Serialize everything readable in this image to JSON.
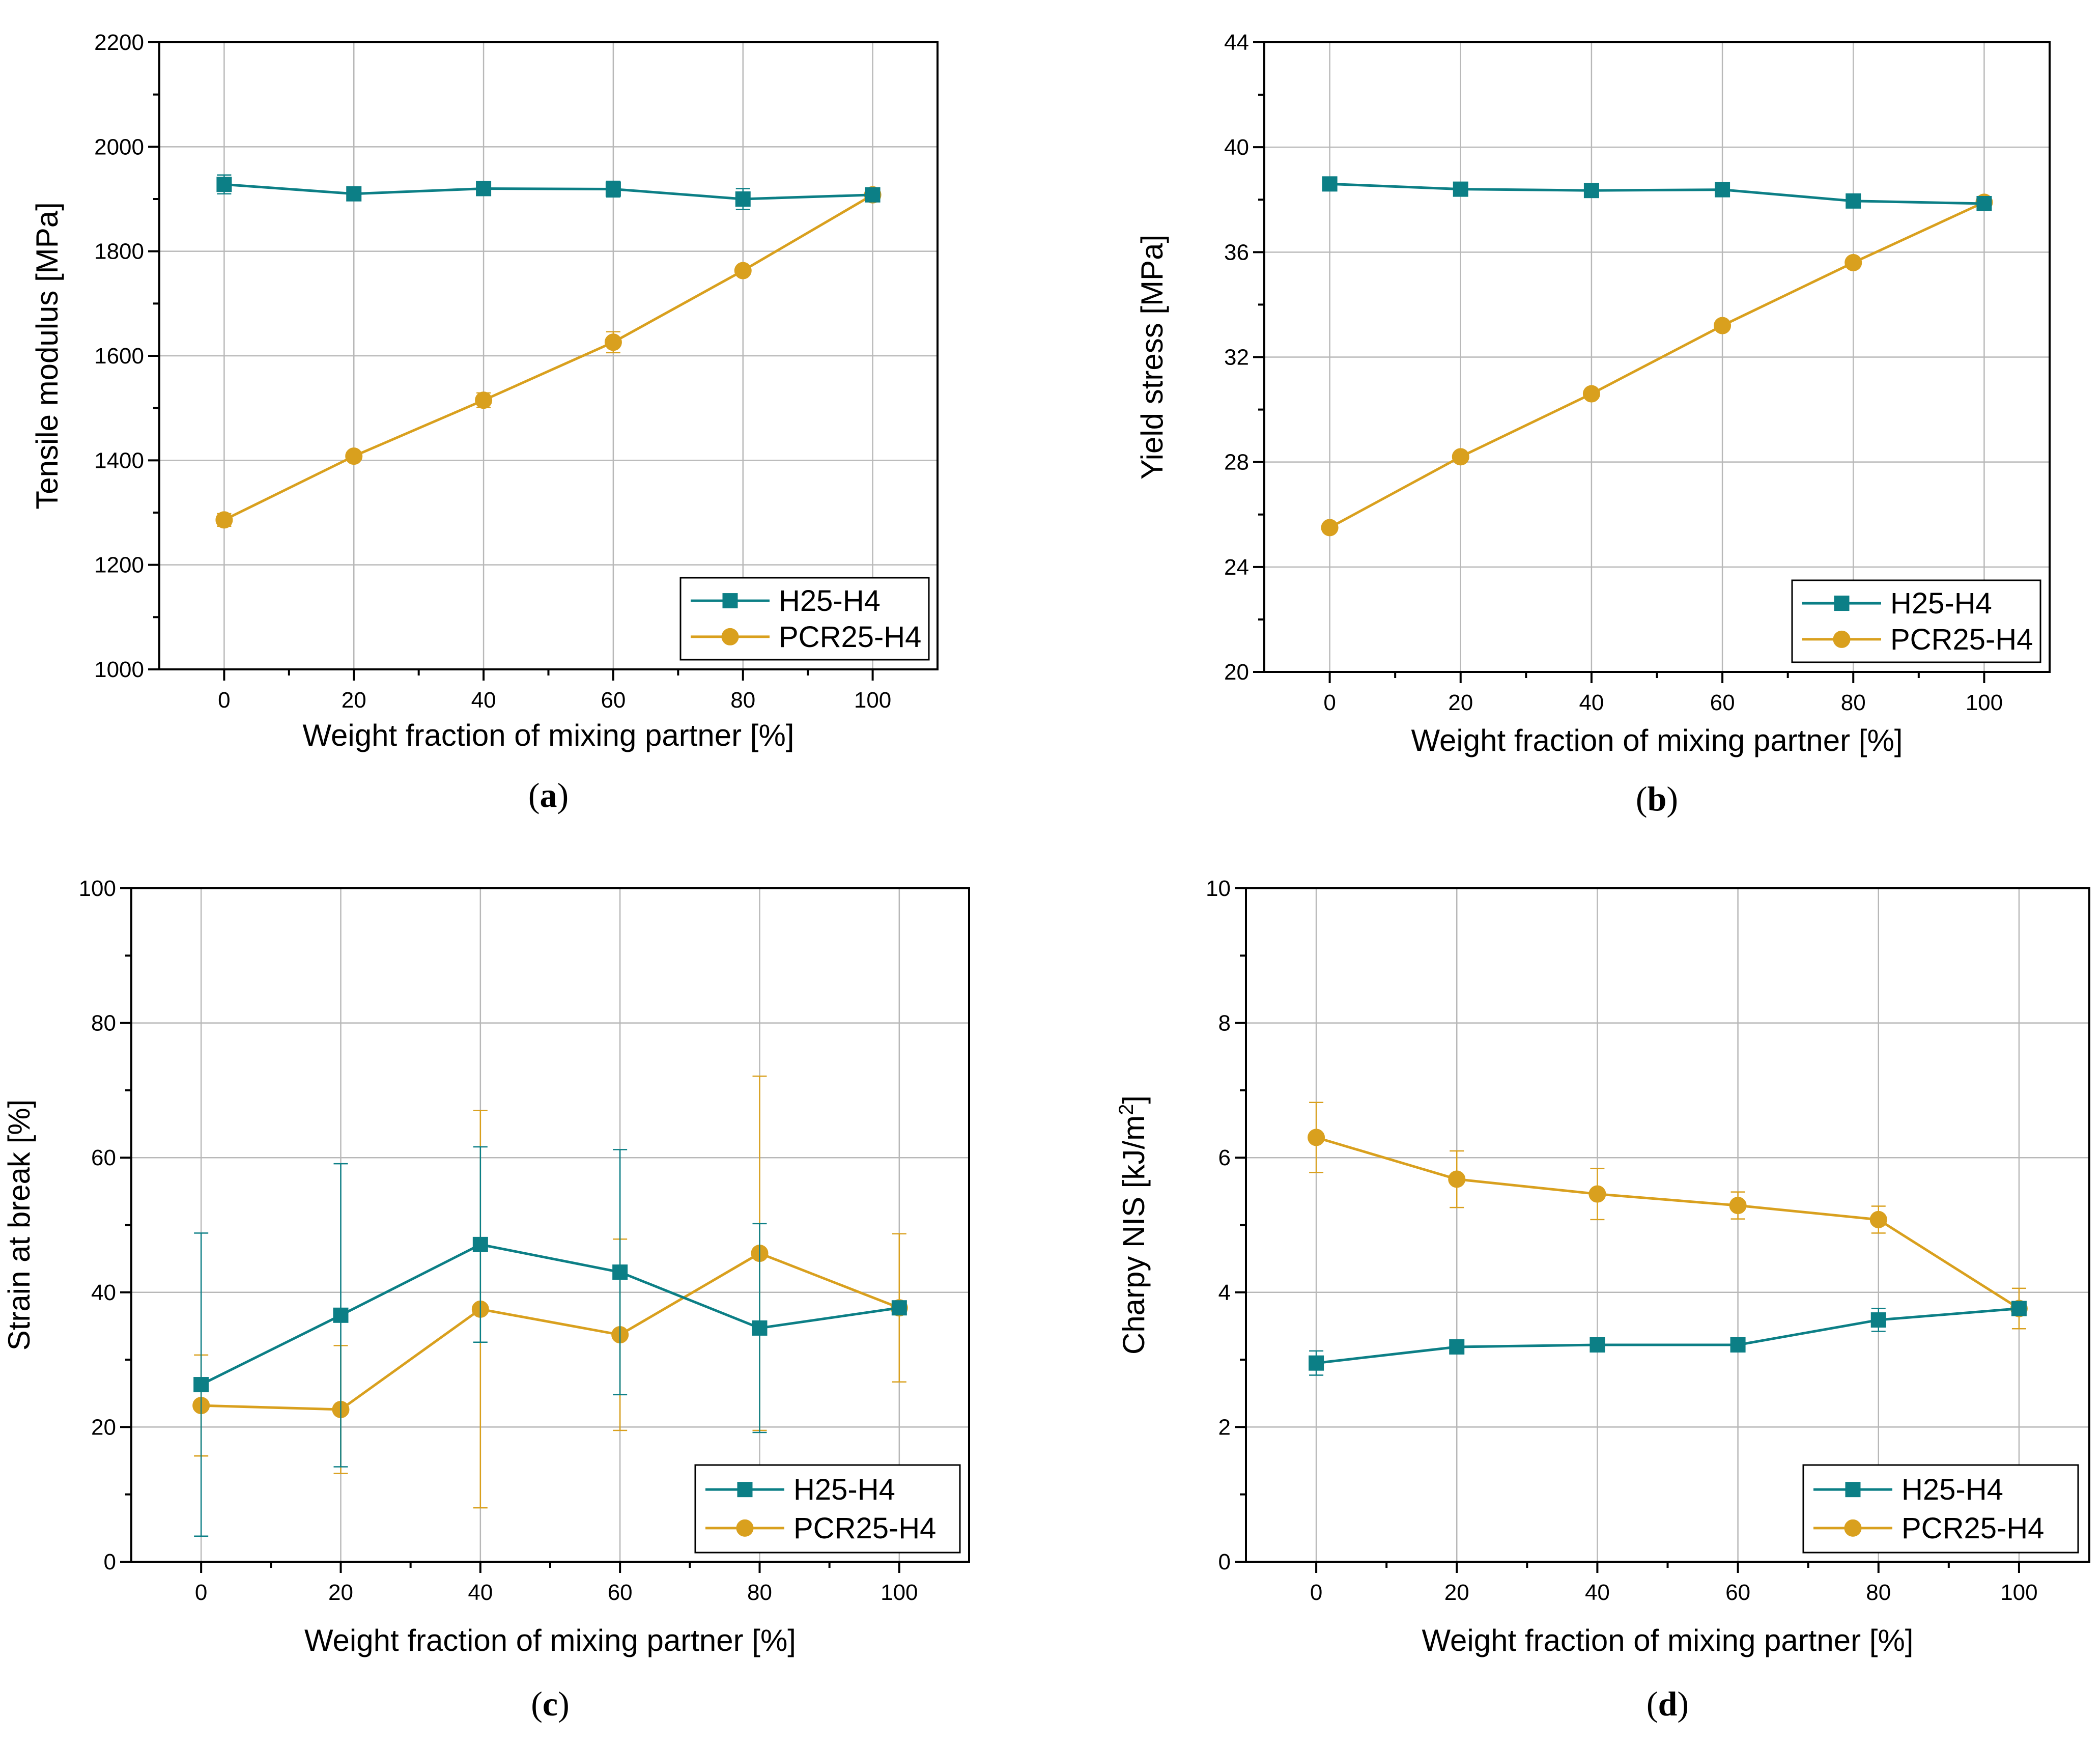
{
  "colors": {
    "H25-H4": "#0c7f86",
    "PCR25-H4": "#d9a01e"
  },
  "chart_data": [
    {
      "type": "line",
      "panel": "(a)",
      "xlabel": "Weight fraction of mixing partner [%]",
      "ylabel": "Tensile modulus [MPa]",
      "xlim": [
        -10,
        110
      ],
      "ylim": [
        1000,
        2200
      ],
      "xticks": [
        0,
        20,
        40,
        60,
        80,
        100
      ],
      "xtick_labels": [
        "0",
        "20",
        "40",
        "60",
        "80",
        "100"
      ],
      "yticks": [
        1000,
        1200,
        1400,
        1600,
        1800,
        2000,
        2200
      ],
      "ytick_labels": [
        "1000",
        "1200",
        "1400",
        "1600",
        "1800",
        "2000",
        "2200"
      ],
      "grid": true,
      "legend_position": "bottom-right",
      "x": [
        0,
        20,
        40,
        60,
        80,
        100
      ],
      "series": [
        {
          "name": "H25-H4",
          "marker": "square",
          "values": [
            1928,
            1910,
            1920,
            1919,
            1900,
            1908
          ],
          "errors": [
            18,
            12,
            8,
            15,
            20,
            8
          ]
        },
        {
          "name": "PCR25-H4",
          "marker": "circle",
          "values": [
            1286,
            1408,
            1515,
            1626,
            1763,
            1908
          ],
          "errors": [
            12,
            8,
            14,
            20,
            8,
            10
          ]
        }
      ]
    },
    {
      "type": "line",
      "panel": "(b)",
      "xlabel": "Weight fraction of mixing partner [%]",
      "ylabel": "Yield stress [MPa]",
      "xlim": [
        -10,
        110
      ],
      "ylim": [
        20,
        44
      ],
      "xticks": [
        0,
        20,
        40,
        60,
        80,
        100
      ],
      "xtick_labels": [
        "0",
        "20",
        "40",
        "60",
        "80",
        "100"
      ],
      "yticks": [
        20,
        24,
        28,
        32,
        36,
        40,
        44
      ],
      "ytick_labels": [
        "20",
        "24",
        "28",
        "32",
        "36",
        "40",
        "44"
      ],
      "grid": true,
      "legend_position": "bottom-right",
      "x": [
        0,
        20,
        40,
        60,
        80,
        100
      ],
      "series": [
        {
          "name": "H25-H4",
          "marker": "square",
          "values": [
            38.6,
            38.4,
            38.35,
            38.38,
            37.95,
            37.85
          ],
          "errors": [
            0.1,
            0.1,
            0.1,
            0.1,
            0.1,
            0.1
          ]
        },
        {
          "name": "PCR25-H4",
          "marker": "circle",
          "values": [
            25.5,
            28.2,
            30.6,
            33.2,
            35.6,
            37.9
          ],
          "errors": [
            0.1,
            0.1,
            0.1,
            0.1,
            0.1,
            0.1
          ]
        }
      ]
    },
    {
      "type": "line",
      "panel": "(c)",
      "xlabel": "Weight fraction of mixing partner [%]",
      "ylabel": "Strain at break [%]",
      "xlim": [
        -10,
        110
      ],
      "ylim": [
        0,
        100
      ],
      "xticks": [
        0,
        20,
        40,
        60,
        80,
        100
      ],
      "xtick_labels": [
        "0",
        "20",
        "40",
        "60",
        "80",
        "100"
      ],
      "yticks": [
        0,
        20,
        40,
        60,
        80,
        100
      ],
      "ytick_labels": [
        "0",
        "20",
        "40",
        "60",
        "80",
        "100"
      ],
      "grid": true,
      "legend_position": "bottom-right",
      "x": [
        0,
        20,
        40,
        60,
        80,
        100
      ],
      "series": [
        {
          "name": "H25-H4",
          "marker": "square",
          "values": [
            26.3,
            36.6,
            47.1,
            43.0,
            34.7,
            37.7
          ],
          "errors": [
            22.5,
            22.5,
            14.5,
            18.2,
            15.5,
            0.5
          ]
        },
        {
          "name": "PCR25-H4",
          "marker": "circle",
          "values": [
            23.2,
            22.6,
            37.5,
            33.7,
            45.8,
            37.7
          ],
          "errors": [
            7.5,
            9.5,
            29.5,
            14.2,
            26.3,
            11.0
          ]
        }
      ]
    },
    {
      "type": "line",
      "panel": "(d)",
      "xlabel": "Weight fraction of mixing partner [%]",
      "ylabel": "Charpy NIS [kJ/m",
      "ylabel_superscript": "2",
      "ylabel_suffix": "]",
      "xlim": [
        -10,
        110
      ],
      "ylim": [
        0,
        10
      ],
      "xticks": [
        0,
        20,
        40,
        60,
        80,
        100
      ],
      "xtick_labels": [
        "0",
        "20",
        "40",
        "60",
        "80",
        "100"
      ],
      "yticks": [
        0,
        2,
        4,
        6,
        8,
        10
      ],
      "ytick_labels": [
        "0",
        "2",
        "4",
        "6",
        "8",
        "10"
      ],
      "grid": true,
      "legend_position": "bottom-right",
      "x": [
        0,
        20,
        40,
        60,
        80,
        100
      ],
      "series": [
        {
          "name": "H25-H4",
          "marker": "square",
          "values": [
            2.95,
            3.19,
            3.22,
            3.22,
            3.59,
            3.76
          ],
          "errors": [
            0.18,
            0.05,
            0.05,
            0.05,
            0.17,
            0.05
          ]
        },
        {
          "name": "PCR25-H4",
          "marker": "circle",
          "values": [
            6.3,
            5.68,
            5.46,
            5.29,
            5.08,
            3.76
          ],
          "errors": [
            0.52,
            0.42,
            0.38,
            0.2,
            0.2,
            0.3
          ]
        }
      ]
    }
  ]
}
